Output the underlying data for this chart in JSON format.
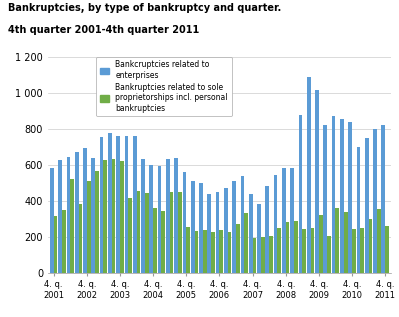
{
  "title_line1": "Bankruptcies, by type of bankruptcy and quarter.",
  "title_line2": "4th quarter 2001-4th quarter 2011",
  "enterprises": [
    580,
    625,
    645,
    670,
    695,
    640,
    755,
    775,
    760,
    760,
    760,
    635,
    600,
    595,
    635,
    640,
    560,
    510,
    500,
    435,
    450,
    470,
    510,
    540,
    435,
    380,
    480,
    545,
    580,
    585,
    880,
    1090,
    1015,
    820,
    870,
    855,
    840,
    700,
    750,
    800,
    820
  ],
  "proprietorships": [
    315,
    350,
    520,
    380,
    510,
    565,
    625,
    635,
    620,
    415,
    455,
    445,
    360,
    345,
    450,
    450,
    255,
    230,
    240,
    225,
    235,
    225,
    270,
    330,
    195,
    200,
    205,
    250,
    280,
    285,
    245,
    250,
    320,
    205,
    360,
    340,
    245,
    250,
    300,
    355,
    260
  ],
  "xtick_positions": [
    0,
    4,
    8,
    12,
    16,
    20,
    24,
    28,
    32,
    36,
    40
  ],
  "xtick_labels": [
    "4. q.\n2001",
    "4. q.\n2002",
    "4. q.\n2003",
    "4. q.\n2004",
    "4. q.\n2005",
    "4. q.\n2006",
    "4. q.\n2007",
    "4. q.\n2008",
    "4. q.\n2009",
    "4. q.\n2010",
    "4. q.\n2011"
  ],
  "bar_width": 0.45,
  "color_enterprises": "#5B9BD5",
  "color_proprietorships": "#70AD47",
  "ylim": [
    0,
    1200
  ],
  "ytick_values": [
    0,
    200,
    400,
    600,
    800,
    1000,
    1200
  ],
  "legend_label1": "Bankcruptcies related to\nenterprises",
  "legend_label2": "Bankruptcies related to sole\nproprietorships incl. personal\nbankruptcies",
  "bg_color": "#FFFFFF",
  "grid_color": "#CCCCCC"
}
